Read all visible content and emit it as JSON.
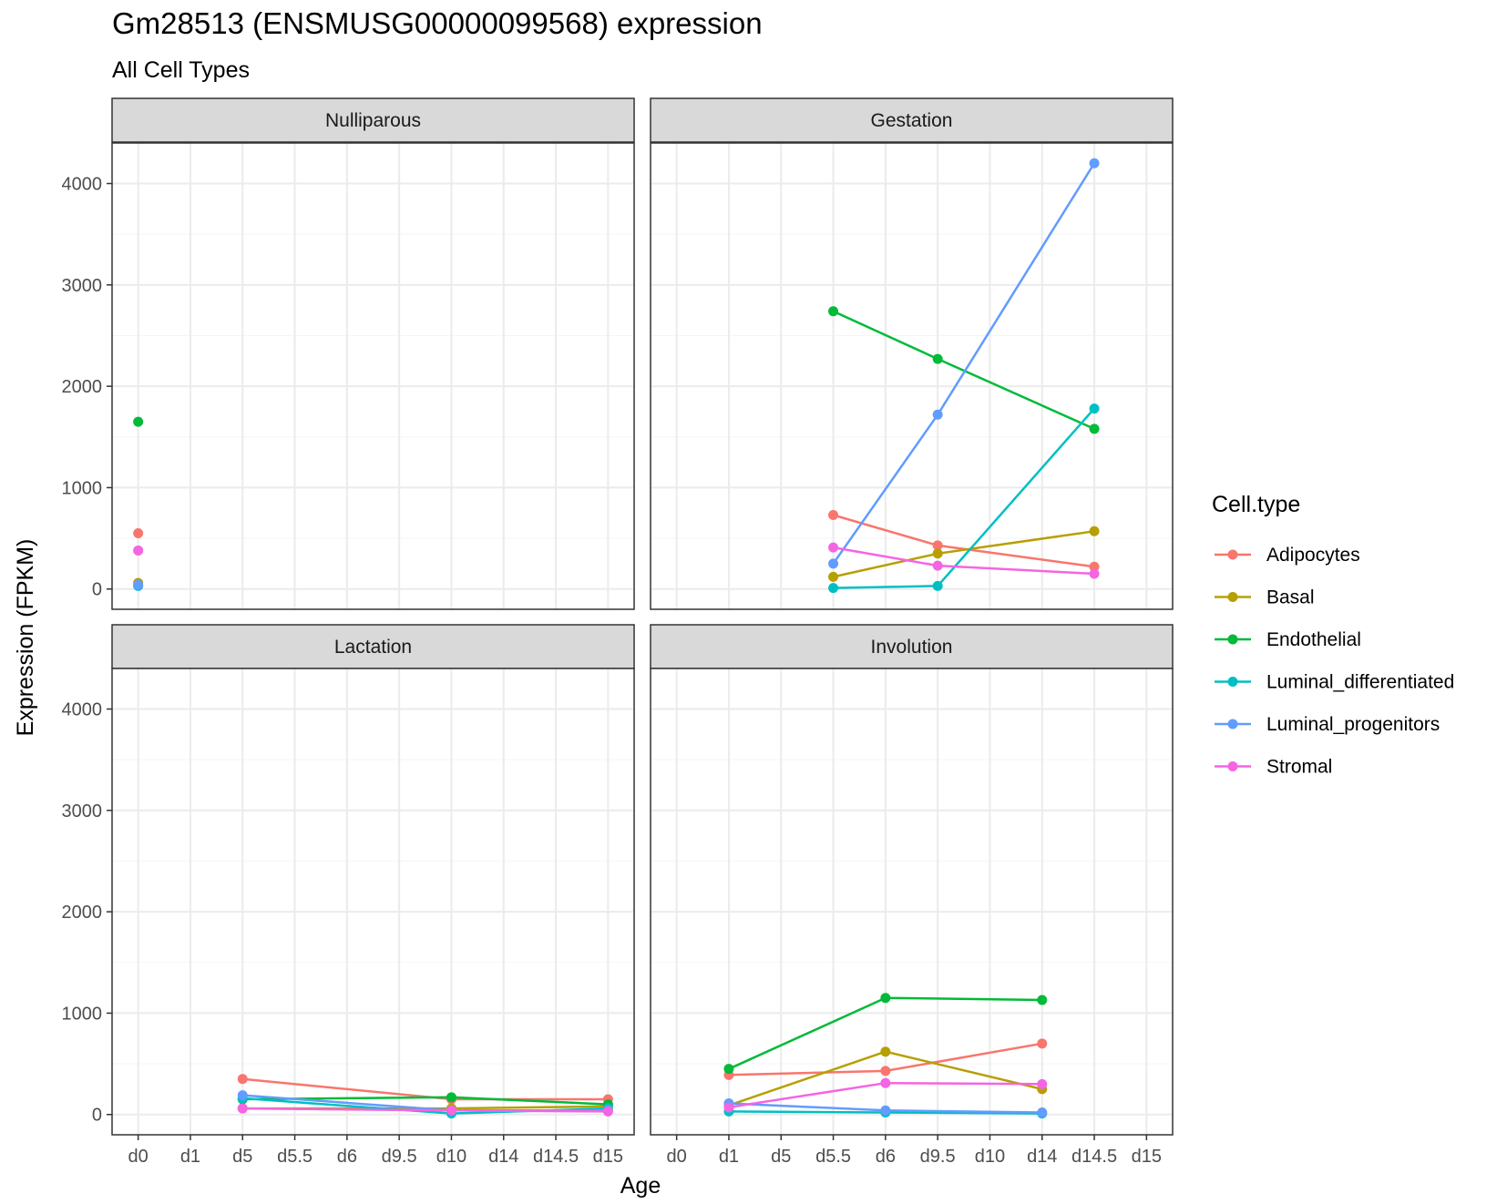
{
  "chart_data": {
    "type": "line",
    "title": "Gm28513 (ENSMUSG00000099568) expression",
    "subtitle": "All Cell Types",
    "xlabel": "Age",
    "ylabel": "Expression (FPKM)",
    "x_categories": [
      "d0",
      "d1",
      "d5",
      "d5.5",
      "d6",
      "d9.5",
      "d10",
      "d14",
      "d14.5",
      "d15"
    ],
    "y_ticks": [
      0,
      1000,
      2000,
      3000,
      4000
    ],
    "y_tick_labels": [
      "0",
      "1000",
      "2000",
      "3000",
      "4000"
    ],
    "ylim": [
      -200,
      4400
    ],
    "grid": true,
    "legend": {
      "title": "Cell.type",
      "placement": "right",
      "entries": [
        "Adipocytes",
        "Basal",
        "Endothelial",
        "Luminal_differentiated",
        "Luminal_progenitors",
        "Stromal"
      ]
    },
    "colors": {
      "Adipocytes": "#F8766D",
      "Basal": "#B79F00",
      "Endothelial": "#00BA38",
      "Luminal_differentiated": "#00BFC4",
      "Luminal_progenitors": "#619CFF",
      "Stromal": "#F564E3"
    },
    "panels": [
      {
        "label": "Nulliparous",
        "series": [
          {
            "name": "Adipocytes",
            "points": [
              [
                "d0",
                550
              ]
            ]
          },
          {
            "name": "Basal",
            "points": [
              [
                "d0",
                60
              ]
            ]
          },
          {
            "name": "Endothelial",
            "points": [
              [
                "d0",
                1650
              ]
            ]
          },
          {
            "name": "Luminal_differentiated",
            "points": [
              [
                "d0",
                30
              ]
            ]
          },
          {
            "name": "Luminal_progenitors",
            "points": [
              [
                "d0",
                40
              ]
            ]
          },
          {
            "name": "Stromal",
            "points": [
              [
                "d0",
                380
              ]
            ]
          }
        ]
      },
      {
        "label": "Gestation",
        "series": [
          {
            "name": "Adipocytes",
            "points": [
              [
                "d5.5",
                730
              ],
              [
                "d9.5",
                430
              ],
              [
                "d14.5",
                220
              ]
            ]
          },
          {
            "name": "Basal",
            "points": [
              [
                "d5.5",
                120
              ],
              [
                "d9.5",
                350
              ],
              [
                "d14.5",
                570
              ]
            ]
          },
          {
            "name": "Endothelial",
            "points": [
              [
                "d5.5",
                2740
              ],
              [
                "d9.5",
                2270
              ],
              [
                "d14.5",
                1580
              ]
            ]
          },
          {
            "name": "Luminal_differentiated",
            "points": [
              [
                "d5.5",
                10
              ],
              [
                "d9.5",
                30
              ],
              [
                "d14.5",
                1780
              ]
            ]
          },
          {
            "name": "Luminal_progenitors",
            "points": [
              [
                "d5.5",
                250
              ],
              [
                "d9.5",
                1720
              ],
              [
                "d14.5",
                4200
              ]
            ]
          },
          {
            "name": "Stromal",
            "points": [
              [
                "d5.5",
                410
              ],
              [
                "d9.5",
                230
              ],
              [
                "d14.5",
                150
              ]
            ]
          }
        ]
      },
      {
        "label": "Lactation",
        "series": [
          {
            "name": "Adipocytes",
            "points": [
              [
                "d5",
                350
              ],
              [
                "d10",
                150
              ],
              [
                "d15",
                150
              ]
            ]
          },
          {
            "name": "Basal",
            "points": [
              [
                "d5",
                60
              ],
              [
                "d10",
                60
              ],
              [
                "d15",
                80
              ]
            ]
          },
          {
            "name": "Endothelial",
            "points": [
              [
                "d5",
                150
              ],
              [
                "d10",
                170
              ],
              [
                "d15",
                100
              ]
            ]
          },
          {
            "name": "Luminal_differentiated",
            "points": [
              [
                "d5",
                160
              ],
              [
                "d10",
                10
              ],
              [
                "d15",
                60
              ]
            ]
          },
          {
            "name": "Luminal_progenitors",
            "points": [
              [
                "d5",
                190
              ],
              [
                "d10",
                40
              ],
              [
                "d15",
                40
              ]
            ]
          },
          {
            "name": "Stromal",
            "points": [
              [
                "d5",
                60
              ],
              [
                "d10",
                40
              ],
              [
                "d15",
                30
              ]
            ]
          }
        ]
      },
      {
        "label": "Involution",
        "series": [
          {
            "name": "Adipocytes",
            "points": [
              [
                "d1",
                390
              ],
              [
                "d6",
                430
              ],
              [
                "d14",
                700
              ]
            ]
          },
          {
            "name": "Basal",
            "points": [
              [
                "d1",
                90
              ],
              [
                "d6",
                620
              ],
              [
                "d14",
                250
              ]
            ]
          },
          {
            "name": "Endothelial",
            "points": [
              [
                "d1",
                450
              ],
              [
                "d6",
                1150
              ],
              [
                "d14",
                1130
              ]
            ]
          },
          {
            "name": "Luminal_differentiated",
            "points": [
              [
                "d1",
                30
              ],
              [
                "d6",
                20
              ],
              [
                "d14",
                10
              ]
            ]
          },
          {
            "name": "Luminal_progenitors",
            "points": [
              [
                "d1",
                110
              ],
              [
                "d6",
                40
              ],
              [
                "d14",
                20
              ]
            ]
          },
          {
            "name": "Stromal",
            "points": [
              [
                "d1",
                70
              ],
              [
                "d6",
                310
              ],
              [
                "d14",
                300
              ]
            ]
          }
        ]
      }
    ]
  }
}
